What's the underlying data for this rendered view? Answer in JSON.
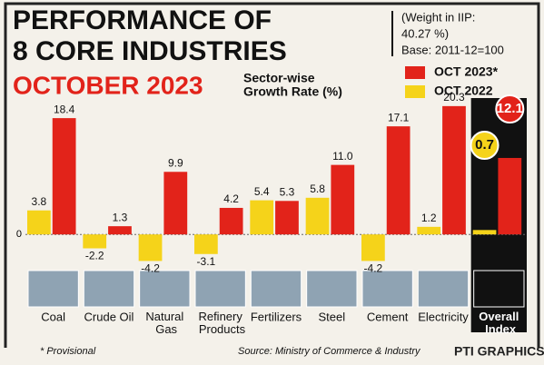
{
  "chart_data": {
    "type": "bar",
    "title": [
      "PERFORMANCE OF",
      "8 CORE INDUSTRIES"
    ],
    "subtitle": "OCTOBER 2023",
    "y_label": [
      "Sector-wise",
      "Growth Rate (%)"
    ],
    "notes": [
      "(Weight in IIP:",
      "40.27 %)",
      "Base: 2011-12=100"
    ],
    "categories": [
      "Coal",
      "Crude Oil",
      "Natural Gas",
      "Refinery Products",
      "Fertilizers",
      "Steel",
      "Cement",
      "Electricity",
      "Overall Index"
    ],
    "series": [
      {
        "name": "OCT 2022",
        "color": "#f5d31a",
        "values": [
          3.8,
          -2.2,
          -4.2,
          -3.1,
          5.4,
          5.8,
          -4.2,
          1.2,
          0.7
        ]
      },
      {
        "name": "OCT 2023*",
        "color": "#e2231a",
        "values": [
          18.4,
          1.3,
          9.9,
          4.2,
          5.3,
          11.0,
          17.1,
          20.3,
          12.1
        ],
        "value_labels": [
          "18.4",
          "1.3",
          "9.9",
          "4.2",
          "5.3",
          "11.0",
          "17.1",
          "20.3",
          "12.1"
        ]
      }
    ],
    "ylim": [
      -5,
      21
    ],
    "yticks": [
      0
    ],
    "footnote": "* Provisional",
    "source": "Source: Ministry of Commerce & Industry",
    "credit": "PTI GRAPHICS"
  }
}
